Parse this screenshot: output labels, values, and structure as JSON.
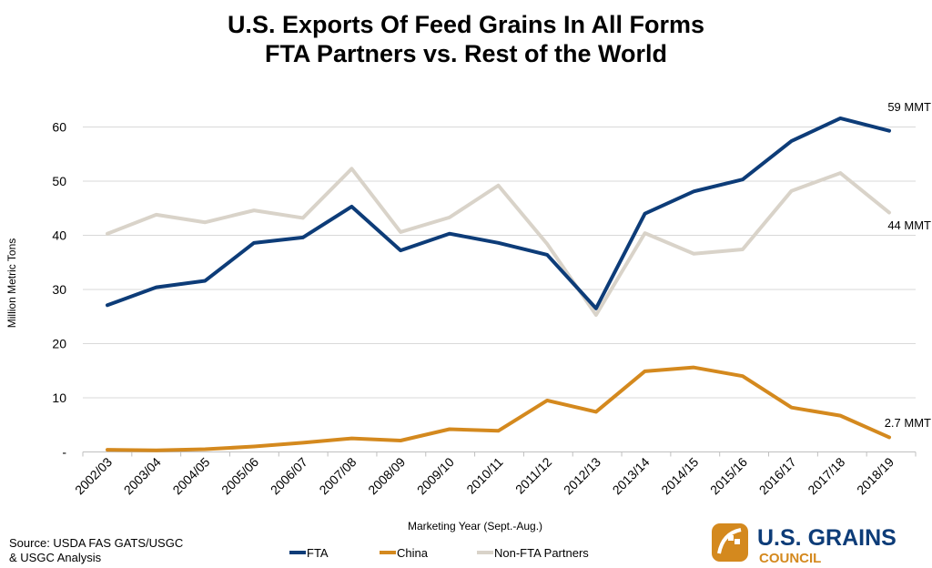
{
  "chart_data": {
    "type": "line",
    "title": "U.S. Exports Of Feed Grains In All Forms",
    "subtitle": "FTA Partners vs. Rest of the World",
    "xlabel": "Marketing Year (Sept.-Aug.)",
    "ylabel": "Million Metric Tons",
    "ylim": [
      0,
      60
    ],
    "yticks": [
      {
        "value": 0,
        "label": "-"
      },
      {
        "value": 10,
        "label": "10"
      },
      {
        "value": 20,
        "label": "20"
      },
      {
        "value": 30,
        "label": "30"
      },
      {
        "value": 40,
        "label": "40"
      },
      {
        "value": 50,
        "label": "50"
      },
      {
        "value": 60,
        "label": "60"
      }
    ],
    "grid": true,
    "legend": "bottom",
    "categories": [
      "2002/03",
      "2003/04",
      "2004/05",
      "2005/06",
      "2006/07",
      "2007/08",
      "2008/09",
      "2009/10",
      "2010/11",
      "2011/12",
      "2012/13",
      "2013/14",
      "2014/15",
      "2015/16",
      "2016/17",
      "2017/18",
      "2018/19"
    ],
    "series": [
      {
        "name": "FTA",
        "color": "#0d3c78",
        "values": [
          27.1,
          30.4,
          31.6,
          38.6,
          39.6,
          45.3,
          37.2,
          40.3,
          38.6,
          36.4,
          26.5,
          44.0,
          48.1,
          50.3,
          57.4,
          61.6,
          59.3
        ],
        "end_label": "59 MMT"
      },
      {
        "name": "China",
        "color": "#d4891e",
        "values": [
          0.4,
          0.3,
          0.5,
          1.0,
          1.7,
          2.5,
          2.1,
          4.2,
          3.9,
          9.5,
          7.4,
          14.9,
          15.6,
          14.0,
          8.2,
          6.7,
          2.7
        ],
        "end_label": "2.7 MMT"
      },
      {
        "name": "Non-FTA Partners",
        "color": "#d9d3c9",
        "values": [
          40.3,
          43.8,
          42.4,
          44.6,
          43.2,
          52.3,
          40.6,
          43.3,
          49.2,
          38.4,
          25.3,
          40.4,
          36.6,
          37.4,
          48.2,
          51.5,
          44.2
        ],
        "end_label": "44 MMT"
      }
    ]
  },
  "source": {
    "line1": "Source: USDA FAS GATS/USGC",
    "line2": "& USGC Analysis"
  },
  "logo": {
    "name": "U.S. GRAINS",
    "sub": "COUNCIL",
    "color_blue": "#0d3c78",
    "color_gold": "#d4891e"
  }
}
